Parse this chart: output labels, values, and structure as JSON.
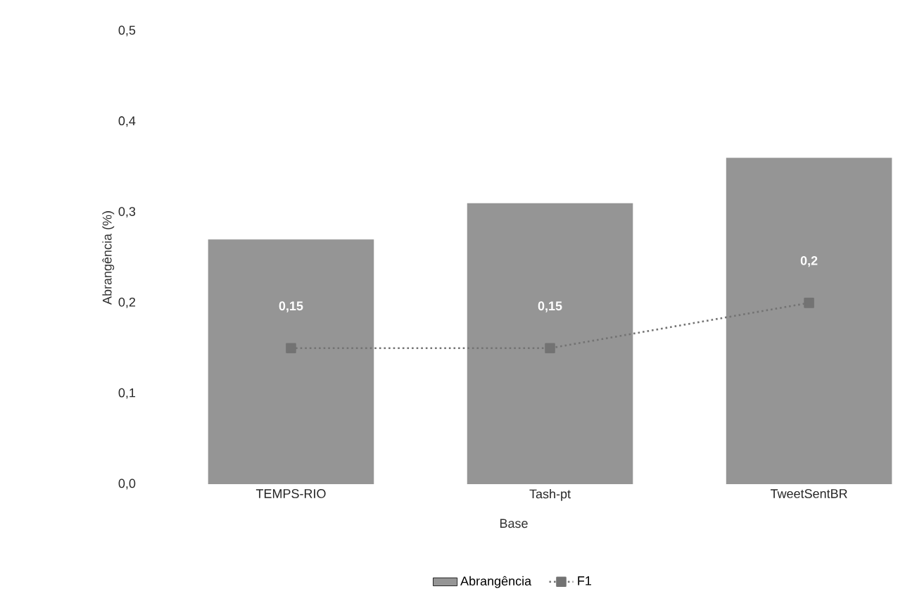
{
  "chart_data": {
    "type": "bar",
    "xlabel": "Base",
    "ylabel": "Abrangência (%)",
    "categories": [
      "TEMPS-RIO",
      "Tash-pt",
      "TweetSentBR"
    ],
    "series": [
      {
        "name": "Abrangência",
        "color": "#959595",
        "values": [
          0.27,
          0.31,
          0.36
        ]
      },
      {
        "name": "F1",
        "type": "line",
        "color": "#737373",
        "values": [
          0.15,
          0.15,
          0.2
        ],
        "value_labels": [
          "0,15",
          "0,15",
          "0,2"
        ],
        "line_style": "dotted",
        "marker": "square"
      }
    ],
    "ylim": [
      0,
      0.5
    ],
    "yticks": [
      {
        "value": 0,
        "label": "0,0"
      },
      {
        "value": 0.1,
        "label": "0,1"
      },
      {
        "value": 0.2,
        "label": "0,2"
      },
      {
        "value": 0.3,
        "label": "0,3"
      },
      {
        "value": 0.4,
        "label": "0,4"
      },
      {
        "value": 0.5,
        "label": "0,5"
      }
    ],
    "grid": false,
    "legend": "bottom"
  }
}
